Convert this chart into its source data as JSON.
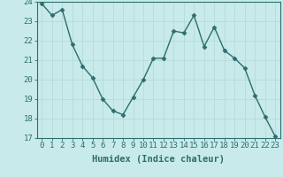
{
  "x": [
    0,
    1,
    2,
    3,
    4,
    5,
    6,
    7,
    8,
    9,
    10,
    11,
    12,
    13,
    14,
    15,
    16,
    17,
    18,
    19,
    20,
    21,
    22,
    23
  ],
  "y": [
    23.9,
    23.3,
    23.6,
    21.8,
    20.7,
    20.1,
    19.0,
    18.4,
    18.2,
    19.1,
    20.0,
    21.1,
    21.1,
    22.5,
    22.4,
    23.3,
    21.7,
    22.7,
    21.5,
    21.1,
    20.6,
    19.2,
    18.1,
    17.1
  ],
  "line_color": "#2d6e6e",
  "marker": "D",
  "marker_size": 2.5,
  "bg_color": "#c8eaea",
  "grid_color": "#b0d8d8",
  "xlabel": "Humidex (Indice chaleur)",
  "ylim": [
    17,
    24
  ],
  "xlim_min": -0.5,
  "xlim_max": 23.5,
  "yticks": [
    17,
    18,
    19,
    20,
    21,
    22,
    23,
    24
  ],
  "xticks": [
    0,
    1,
    2,
    3,
    4,
    5,
    6,
    7,
    8,
    9,
    10,
    11,
    12,
    13,
    14,
    15,
    16,
    17,
    18,
    19,
    20,
    21,
    22,
    23
  ],
  "xtick_labels": [
    "0",
    "1",
    "2",
    "3",
    "4",
    "5",
    "6",
    "7",
    "8",
    "9",
    "10",
    "11",
    "12",
    "13",
    "14",
    "15",
    "16",
    "17",
    "18",
    "19",
    "20",
    "21",
    "22",
    "23"
  ],
  "tick_color": "#2d6e6e",
  "spine_color": "#2d6e6e",
  "label_fontsize": 7.5,
  "tick_fontsize": 6.5
}
